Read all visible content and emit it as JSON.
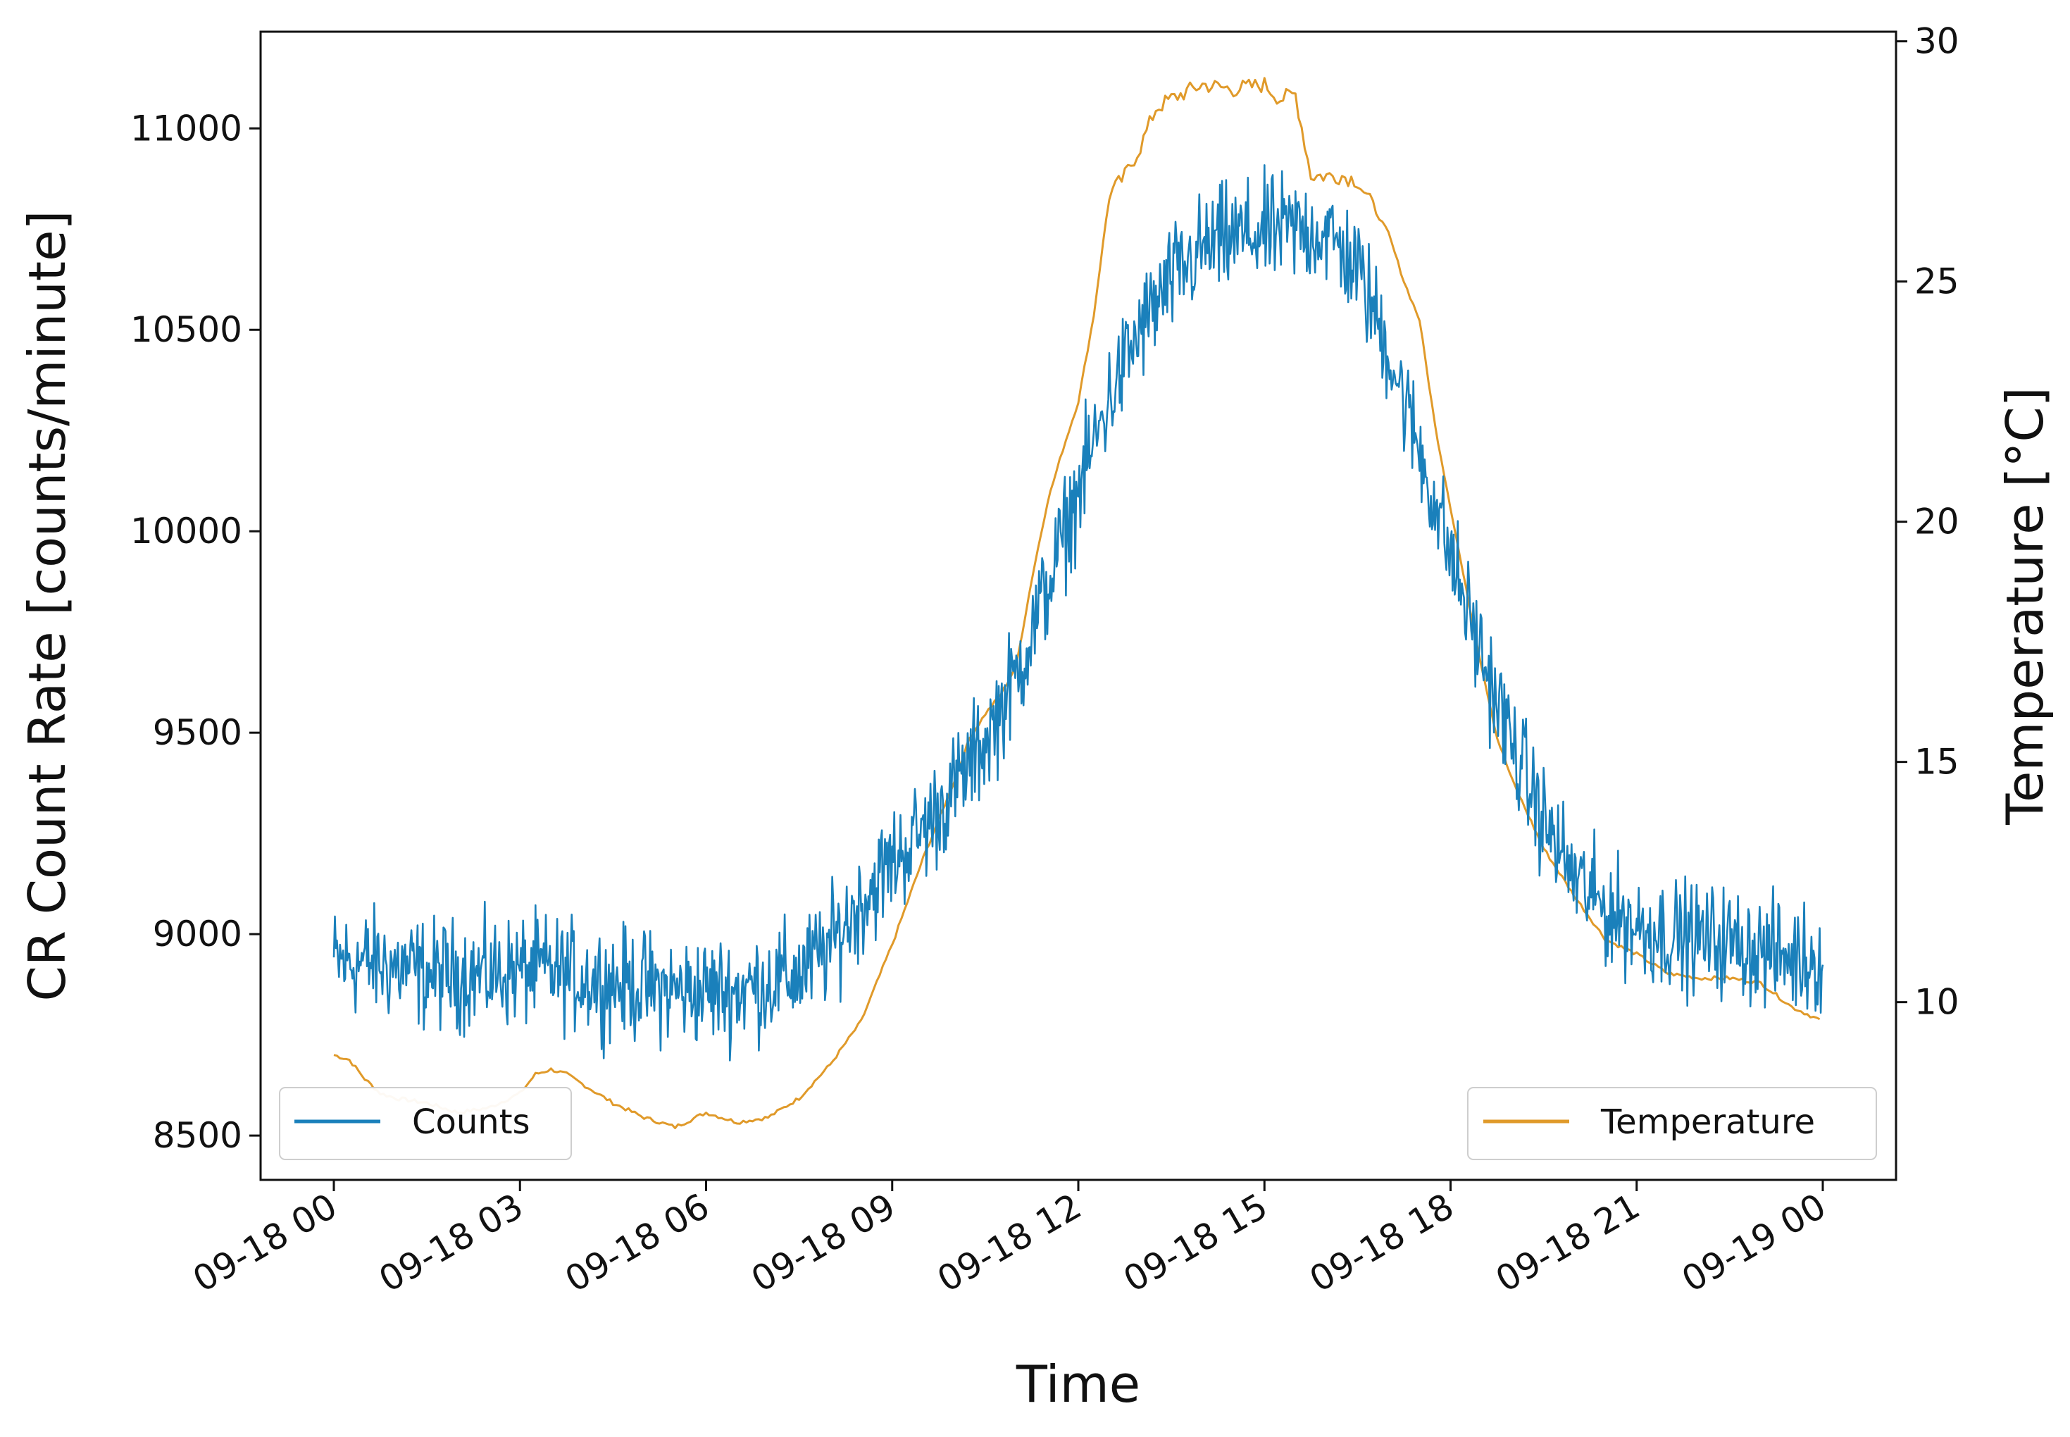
{
  "chart_data": {
    "type": "line",
    "title": "",
    "xlabel": "Time",
    "ylabel": "CR Count Rate [counts/minute]",
    "y2label": "Temperature [$^{\\circ}$C]",
    "y2label_display": "Temperature [°C]",
    "x_range": [
      "09-18 00:00",
      "09-19 00:00"
    ],
    "x_unit": "hour of 09-18",
    "x_ticks": [
      {
        "hour": 0,
        "label": "09-18 00"
      },
      {
        "hour": 3,
        "label": "09-18 03"
      },
      {
        "hour": 6,
        "label": "09-18 06"
      },
      {
        "hour": 9,
        "label": "09-18 09"
      },
      {
        "hour": 12,
        "label": "09-18 12"
      },
      {
        "hour": 15,
        "label": "09-18 15"
      },
      {
        "hour": 18,
        "label": "09-18 18"
      },
      {
        "hour": 21,
        "label": "09-18 21"
      },
      {
        "hour": 24,
        "label": "09-19 00"
      }
    ],
    "ylim": [
      8390,
      11240
    ],
    "y_ticks": [
      8500,
      9000,
      9500,
      10000,
      10500,
      11000
    ],
    "y_tick_labels": [
      "8500",
      "9000",
      "9500",
      "10000",
      "10500",
      "11000"
    ],
    "y2lim": [
      6.3,
      30.2
    ],
    "y2_ticks": [
      10,
      15,
      20,
      25,
      30
    ],
    "y2_tick_labels": [
      "10",
      "15",
      "20",
      "25",
      "30"
    ],
    "grid": false,
    "series": [
      {
        "name": "Counts",
        "axis": "left",
        "color": "#1a80bb",
        "legend_position": "lower-left",
        "noise_amplitude": 120,
        "x": [
          0,
          0.5,
          1,
          1.5,
          2,
          2.5,
          3,
          3.5,
          4,
          4.5,
          5,
          5.5,
          6,
          6.5,
          7,
          7.5,
          8,
          8.5,
          9,
          9.5,
          10,
          10.5,
          11,
          11.5,
          12,
          12.5,
          13,
          13.5,
          14,
          14.5,
          15,
          15.5,
          16,
          16.5,
          17,
          17.5,
          18,
          18.5,
          19,
          19.5,
          20,
          20.5,
          21,
          21.5,
          22,
          22.5,
          23,
          23.5,
          24
        ],
        "y": [
          8930,
          8930,
          8920,
          8900,
          8900,
          8900,
          8910,
          8910,
          8890,
          8880,
          8870,
          8860,
          8860,
          8860,
          8880,
          8900,
          8970,
          9080,
          9180,
          9260,
          9360,
          9480,
          9640,
          9860,
          10100,
          10330,
          10500,
          10620,
          10700,
          10730,
          10740,
          10750,
          10740,
          10650,
          10450,
          10200,
          9940,
          9690,
          9470,
          9280,
          9140,
          9060,
          9020,
          9000,
          8990,
          8980,
          8960,
          8940,
          8940
        ]
      },
      {
        "name": "Temperature",
        "axis": "right",
        "color": "#e09a2a",
        "legend_position": "lower-right",
        "x": [
          0,
          0.25,
          0.5,
          0.75,
          1,
          1.5,
          2,
          2.5,
          3,
          3.25,
          3.5,
          3.75,
          4,
          4.5,
          5,
          5.5,
          6,
          6.5,
          7,
          7.5,
          8,
          8.5,
          9,
          9.5,
          10,
          10.25,
          10.5,
          10.75,
          11,
          11.25,
          11.5,
          11.75,
          12,
          12.25,
          12.5,
          12.75,
          13,
          13.25,
          13.5,
          14,
          14.5,
          15,
          15.25,
          15.5,
          15.75,
          16,
          16.25,
          16.5,
          17,
          17.25,
          17.5,
          17.75,
          18,
          18.25,
          18.5,
          18.75,
          19,
          19.5,
          20,
          20.5,
          21,
          21.5,
          22,
          22.5,
          23,
          23.5,
          24
        ],
        "y": [
          8.9,
          8.8,
          8.4,
          8.1,
          8.0,
          7.9,
          7.7,
          7.8,
          8.1,
          8.5,
          8.6,
          8.5,
          8.3,
          7.9,
          7.6,
          7.4,
          7.7,
          7.5,
          7.6,
          8.0,
          8.7,
          9.6,
          11.2,
          13.0,
          14.6,
          15.5,
          16.0,
          16.4,
          17.0,
          18.8,
          20.4,
          21.5,
          22.5,
          24.3,
          26.8,
          27.2,
          27.8,
          28.6,
          28.8,
          29.1,
          29.0,
          29.1,
          28.8,
          28.9,
          27.2,
          27.2,
          27.2,
          27.1,
          26.0,
          25.0,
          24.2,
          22.0,
          20.3,
          18.6,
          17.0,
          15.5,
          14.6,
          13.2,
          12.2,
          11.3,
          11.0,
          10.6,
          10.5,
          10.5,
          10.4,
          9.9,
          9.6
        ]
      }
    ],
    "legends": [
      {
        "label": "Counts",
        "color": "#1a80bb",
        "placement": "lower-left"
      },
      {
        "label": "Temperature",
        "color": "#e09a2a",
        "placement": "lower-right"
      }
    ]
  }
}
